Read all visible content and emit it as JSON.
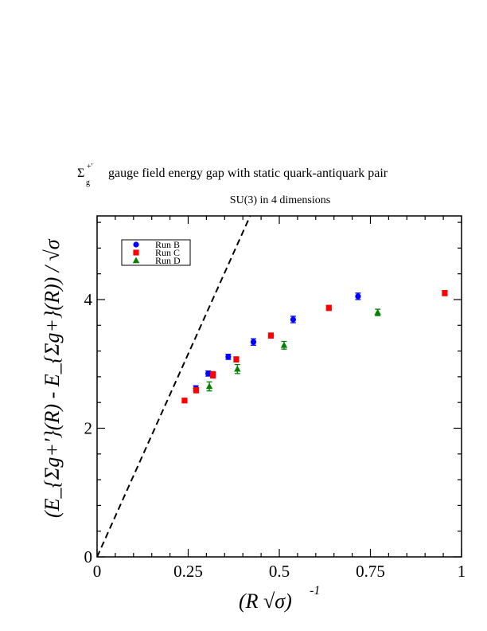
{
  "chart_data": {
    "type": "scatter",
    "title_symbol": "Σ",
    "title_sup": "+'",
    "title_sub": "g",
    "title": "gauge field energy gap with static quark-antiquark pair",
    "subtitle": "SU(3) in 4 dimensions",
    "xlabel": "(R √σ)",
    "xlabel_exponent": "-1",
    "ylabel": "(E_{Σg+'}(R) - E_{Σg+}(R)) / √σ",
    "xlim": [
      0,
      1
    ],
    "ylim": [
      0,
      5.3
    ],
    "x_ticks": [
      {
        "value": 0,
        "label": "0"
      },
      {
        "value": 0.25,
        "label": "0.25"
      },
      {
        "value": 0.5,
        "label": "0.5"
      },
      {
        "value": 0.75,
        "label": "0.75"
      },
      {
        "value": 1,
        "label": "1"
      }
    ],
    "y_ticks": [
      {
        "value": 0,
        "label": "0"
      },
      {
        "value": 2,
        "label": "2"
      },
      {
        "value": 4,
        "label": "4"
      }
    ],
    "grid": false,
    "legend_position": "top-left",
    "series": [
      {
        "name": "Run B",
        "marker": "circle",
        "color": "#0000ff",
        "points": [
          {
            "x": 0.271,
            "y": 2.62,
            "err": 0.04
          },
          {
            "x": 0.305,
            "y": 2.85,
            "err": 0.04
          },
          {
            "x": 0.36,
            "y": 3.11,
            "err": 0.04
          },
          {
            "x": 0.429,
            "y": 3.34,
            "err": 0.05
          },
          {
            "x": 0.538,
            "y": 3.69,
            "err": 0.05
          },
          {
            "x": 0.716,
            "y": 4.05,
            "err": 0.05
          }
        ]
      },
      {
        "name": "Run C",
        "marker": "square",
        "color": "#ff0000",
        "points": [
          {
            "x": 0.24,
            "y": 2.43,
            "err": 0.03
          },
          {
            "x": 0.272,
            "y": 2.59,
            "err": 0.04
          },
          {
            "x": 0.318,
            "y": 2.83,
            "err": 0.05
          },
          {
            "x": 0.382,
            "y": 3.07,
            "err": 0.04
          },
          {
            "x": 0.477,
            "y": 3.44,
            "err": 0.04
          },
          {
            "x": 0.636,
            "y": 3.87,
            "err": 0.04
          },
          {
            "x": 0.954,
            "y": 4.1,
            "err": 0.04
          }
        ]
      },
      {
        "name": "Run D",
        "marker": "triangle",
        "color": "#008000",
        "points": [
          {
            "x": 0.308,
            "y": 2.65,
            "err": 0.07
          },
          {
            "x": 0.385,
            "y": 2.92,
            "err": 0.07
          },
          {
            "x": 0.513,
            "y": 3.29,
            "err": 0.06
          },
          {
            "x": 0.77,
            "y": 3.8,
            "err": 0.05
          }
        ]
      }
    ],
    "reference_line": {
      "style": "dashed",
      "color": "#000000",
      "x": [
        0,
        0.42
      ],
      "y": [
        0,
        5.3
      ]
    }
  }
}
